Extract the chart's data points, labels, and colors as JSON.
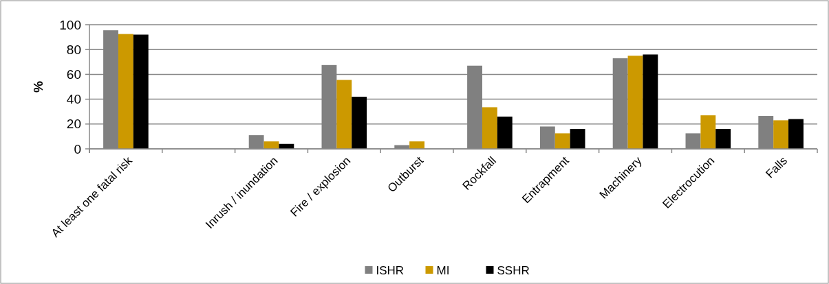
{
  "chart_data": {
    "type": "bar",
    "ylabel": "%",
    "categories": [
      "At least one fatal risk",
      null,
      "Inrush / inundation",
      "Fire / explosion",
      "Outburst",
      "Rockfall",
      "Entrapment",
      "Machinery",
      "Electrocution",
      "Falls"
    ],
    "series": [
      {
        "name": "ISHR",
        "color": "#808080",
        "values": [
          95.5,
          null,
          11,
          67.5,
          3,
          67,
          18,
          73,
          12.5,
          26.5
        ]
      },
      {
        "name": "MI",
        "color": "#cc9900",
        "values": [
          92.5,
          null,
          6,
          55.5,
          6,
          33.5,
          12.5,
          75,
          27,
          23
        ]
      },
      {
        "name": "SSHR",
        "color": "#000000",
        "values": [
          92,
          null,
          4,
          42,
          0,
          26,
          16,
          76,
          16,
          24
        ]
      }
    ],
    "ylim": [
      0,
      100
    ],
    "yticks": [
      0,
      20,
      40,
      60,
      80,
      100
    ],
    "grid": "y",
    "legend": "bottom"
  }
}
